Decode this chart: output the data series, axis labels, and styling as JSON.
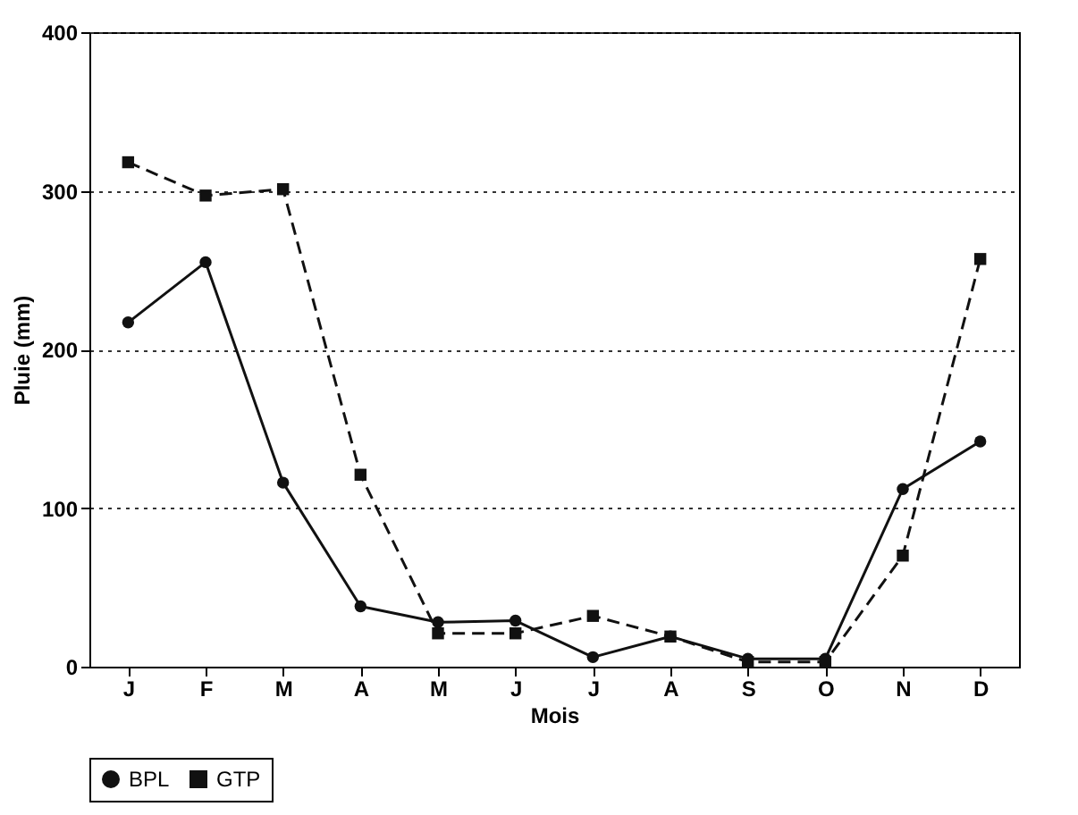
{
  "chart_data": {
    "type": "line",
    "xlabel": "Mois",
    "ylabel": "Pluie (mm)",
    "categories": [
      "J",
      "F",
      "M",
      "A",
      "M",
      "J",
      "J",
      "A",
      "S",
      "O",
      "N",
      "D"
    ],
    "series": [
      {
        "name": "BPL",
        "color": "#111111",
        "marker": "circle",
        "line_style": "solid",
        "values": [
          217,
          255,
          116,
          38,
          28,
          29,
          6,
          19,
          5,
          5,
          112,
          142
        ]
      },
      {
        "name": "GTP",
        "color": "#111111",
        "marker": "square",
        "line_style": "dashed",
        "values": [
          318,
          297,
          301,
          121,
          21,
          21,
          32,
          19,
          3,
          3,
          70,
          257
        ]
      }
    ],
    "ylim": [
      0,
      400
    ],
    "yticks": [
      0,
      100,
      200,
      300,
      400
    ],
    "grid": "y",
    "legend": "bottom"
  }
}
